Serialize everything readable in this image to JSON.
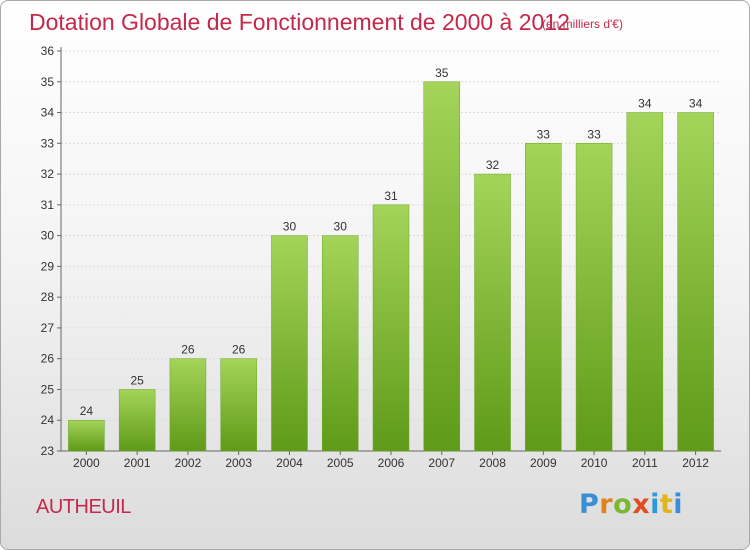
{
  "title": "Dotation Globale de Fonctionnement de 2000 à 2012",
  "subtitle": "(en milliers d'€)",
  "commune": "AUTHEUIL",
  "logo": {
    "text": "Proxiti",
    "colors": [
      "#3a8fd4",
      "#e0831d",
      "#7bb831",
      "#e04d1f",
      "#2c9ad6",
      "#e3b41c"
    ]
  },
  "colors": {
    "accent": "#c5284a",
    "bar_top": "#a4d45a",
    "bar_bottom": "#5f9a18",
    "grid": "#dcdcdc"
  },
  "chart_data": {
    "type": "bar",
    "title": "Dotation Globale de Fonctionnement de 2000 à 2012",
    "subtitle": "(en milliers d'€)",
    "categories": [
      "2000",
      "2001",
      "2002",
      "2003",
      "2004",
      "2005",
      "2006",
      "2007",
      "2008",
      "2009",
      "2010",
      "2011",
      "2012"
    ],
    "values": [
      24,
      25,
      26,
      26,
      30,
      30,
      31,
      35,
      32,
      33,
      33,
      34,
      34
    ],
    "xlabel": "",
    "ylabel": "",
    "ylim": [
      23,
      36
    ],
    "yticks": [
      23,
      24,
      25,
      26,
      27,
      28,
      29,
      30,
      31,
      32,
      33,
      34,
      35,
      36
    ],
    "grid": true,
    "data_labels": true
  }
}
